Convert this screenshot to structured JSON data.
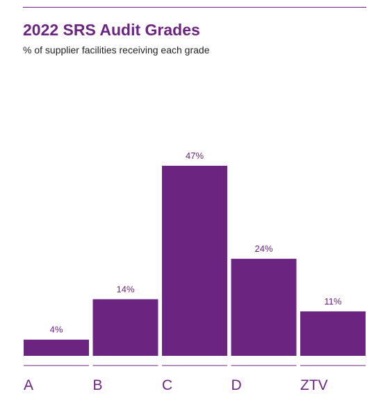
{
  "header": {
    "title": "2022 SRS Audit Grades",
    "subtitle": "% of supplier facilities receiving each grade"
  },
  "colors": {
    "accent": "#6b2580",
    "bar": "#6b2580",
    "text": "#1f1f1f"
  },
  "chart_data": {
    "type": "bar",
    "title": "2022 SRS Audit Grades",
    "subtitle": "% of supplier facilities receiving each grade",
    "categories": [
      "A",
      "B",
      "C",
      "D",
      "ZTV"
    ],
    "values": [
      4,
      14,
      47,
      24,
      11
    ],
    "value_labels": [
      "4%",
      "14%",
      "47%",
      "24%",
      "11%"
    ],
    "unit": "%",
    "ylim": [
      0,
      47
    ],
    "grid": false,
    "legend": "none"
  }
}
